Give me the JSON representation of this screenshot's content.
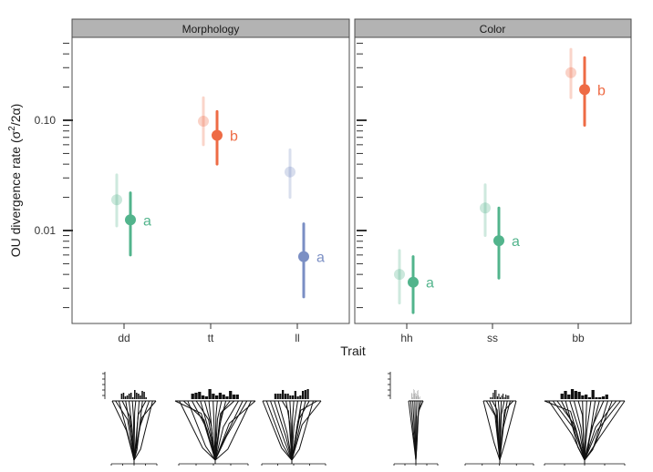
{
  "chart_data": {
    "type": "scatter",
    "ylabel": "OU divergence rate (σ²/2α)",
    "ylabel_main": "OU divergence rate (σ",
    "ylabel_sup": "2",
    "ylabel_tail": "/2α)",
    "xlabel": "Trait",
    "y_scale": "log",
    "ylim": [
      0.0015,
      0.7
    ],
    "y_ticks": [
      {
        "value": 0.1,
        "label": "0.10"
      },
      {
        "value": 0.01,
        "label": "0.01"
      }
    ],
    "panels": [
      {
        "title": "Morphology",
        "categories": [
          "dd",
          "tt",
          "ll"
        ],
        "points": [
          {
            "category": "dd",
            "color": "#52b48c",
            "group": "a",
            "faded": {
              "y": 0.019,
              "lo": 0.011,
              "hi": 0.032
            },
            "main": {
              "y": 0.0125,
              "lo": 0.006,
              "hi": 0.022
            }
          },
          {
            "category": "tt",
            "color": "#ee6b45",
            "group": "b",
            "faded": {
              "y": 0.098,
              "lo": 0.06,
              "hi": 0.16
            },
            "main": {
              "y": 0.073,
              "lo": 0.04,
              "hi": 0.12
            }
          },
          {
            "category": "ll",
            "color": "#7b8fc4",
            "group": "a",
            "faded": {
              "y": 0.034,
              "lo": 0.02,
              "hi": 0.054
            },
            "main": {
              "y": 0.0058,
              "lo": 0.0025,
              "hi": 0.0115
            }
          }
        ]
      },
      {
        "title": "Color",
        "categories": [
          "hh",
          "ss",
          "bb"
        ],
        "points": [
          {
            "category": "hh",
            "color": "#52b48c",
            "group": "a",
            "faded": {
              "y": 0.004,
              "lo": 0.0022,
              "hi": 0.0066
            },
            "main": {
              "y": 0.0034,
              "lo": 0.0018,
              "hi": 0.0058
            }
          },
          {
            "category": "ss",
            "color": "#52b48c",
            "group": "a",
            "faded": {
              "y": 0.016,
              "lo": 0.009,
              "hi": 0.026
            },
            "main": {
              "y": 0.0081,
              "lo": 0.0037,
              "hi": 0.016
            }
          },
          {
            "category": "bb",
            "color": "#ee6b45",
            "group": "b",
            "faded": {
              "y": 0.27,
              "lo": 0.16,
              "hi": 0.44
            },
            "main": {
              "y": 0.19,
              "lo": 0.09,
              "hi": 0.37
            }
          }
        ]
      }
    ],
    "grid": false,
    "legend": "none"
  }
}
